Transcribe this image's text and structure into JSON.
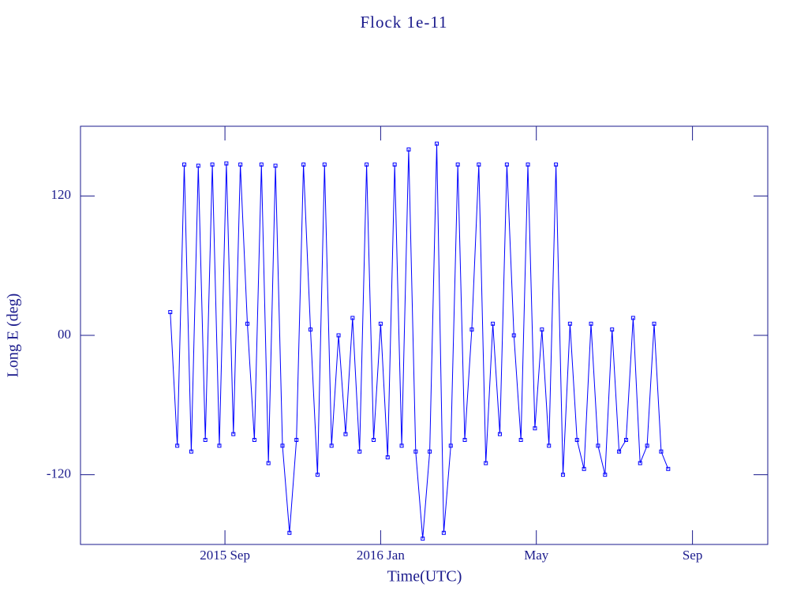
{
  "chart_data": {
    "type": "line",
    "title": "Flock 1e-11",
    "x_label": "Time(UTC)",
    "y_label": "Long E (deg)",
    "xlim": [
      2015.358,
      2016.828
    ],
    "xticks": [
      {
        "value": 2015.667,
        "label": "2015 Sep"
      },
      {
        "value": 2016.0,
        "label": "2016 Jan"
      },
      {
        "value": 2016.333,
        "label": "May"
      },
      {
        "value": 2016.667,
        "label": "Sep"
      }
    ],
    "ylim": [
      -180,
      180
    ],
    "yticks": [
      -120,
      {
        "value": 0,
        "label": "00"
      },
      120
    ],
    "axis_color": "#1a1a8c",
    "series": [
      {
        "color": "#0000ff",
        "x": [
          2015.55,
          2015.565,
          2015.58,
          2015.595,
          2015.61,
          2015.625,
          2015.64,
          2015.655,
          2015.67,
          2015.685,
          2015.7,
          2015.715,
          2015.73,
          2015.745,
          2015.76,
          2015.775,
          2015.79,
          2015.805,
          2015.82,
          2015.835,
          2015.85,
          2015.865,
          2015.88,
          2015.895,
          2015.91,
          2015.925,
          2015.94,
          2015.955,
          2015.97,
          2015.985,
          2016.0,
          2016.015,
          2016.03,
          2016.045,
          2016.06,
          2016.075,
          2016.09,
          2016.105,
          2016.12,
          2016.135,
          2016.15,
          2016.165,
          2016.18,
          2016.195,
          2016.21,
          2016.225,
          2016.24,
          2016.255,
          2016.27,
          2016.285,
          2016.3,
          2016.315,
          2016.33,
          2016.345,
          2016.36,
          2016.375,
          2016.39,
          2016.405,
          2016.42,
          2016.435,
          2016.45,
          2016.465,
          2016.48,
          2016.495,
          2016.51,
          2016.525,
          2016.54,
          2016.555,
          2016.57,
          2016.585,
          2016.6,
          2016.615
        ],
        "values": [
          20,
          -95,
          147,
          -100,
          146,
          -90,
          147,
          -95,
          148,
          -85,
          147,
          10,
          -90,
          147,
          -110,
          146,
          -95,
          -170,
          -90,
          147,
          5,
          -120,
          147,
          -95,
          0,
          -85,
          15,
          -100,
          147,
          -90,
          10,
          -105,
          147,
          -95,
          160,
          -100,
          -175,
          -100,
          165,
          -170,
          -95,
          147,
          -90,
          5,
          147,
          -110,
          10,
          -85,
          147,
          0,
          -90,
          147,
          -80,
          5,
          -95,
          147,
          -120,
          10,
          -90,
          -115,
          10,
          -95,
          -120,
          5,
          -100,
          -90,
          15,
          -110,
          -95,
          10,
          -100,
          -115
        ]
      }
    ]
  }
}
